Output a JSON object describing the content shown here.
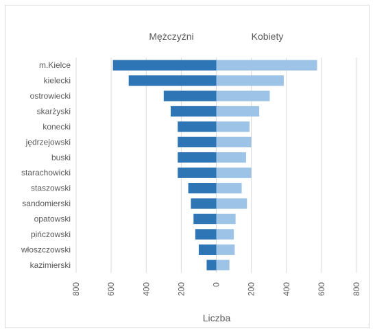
{
  "chart_data": {
    "type": "bar",
    "orientation": "horizontal",
    "layout": "population-pyramid",
    "categories": [
      "m.Kielce",
      "kielecki",
      "ostrowiecki",
      "skarżyski",
      "konecki",
      "jędrzejowski",
      "buski",
      "starachowicki",
      "staszowski",
      "sandomierski",
      "opatowski",
      "pińczowski",
      "włoszczowski",
      "kazimierski"
    ],
    "series": [
      {
        "name": "Mężczyźni",
        "color": "#2e75b6",
        "side": "left",
        "values": [
          590,
          500,
          300,
          260,
          220,
          220,
          220,
          220,
          160,
          145,
          130,
          120,
          100,
          55
        ]
      },
      {
        "name": "Kobiety",
        "color": "#9dc3e6",
        "side": "right",
        "values": [
          575,
          385,
          305,
          245,
          190,
          200,
          170,
          200,
          145,
          175,
          110,
          100,
          105,
          75
        ]
      }
    ],
    "x_ticks": [
      "800",
      "600",
      "400",
      "200",
      "0",
      "200",
      "400",
      "600",
      "800"
    ],
    "x_range": [
      -800,
      800
    ],
    "xlabel": "Liczba",
    "grid": true
  }
}
